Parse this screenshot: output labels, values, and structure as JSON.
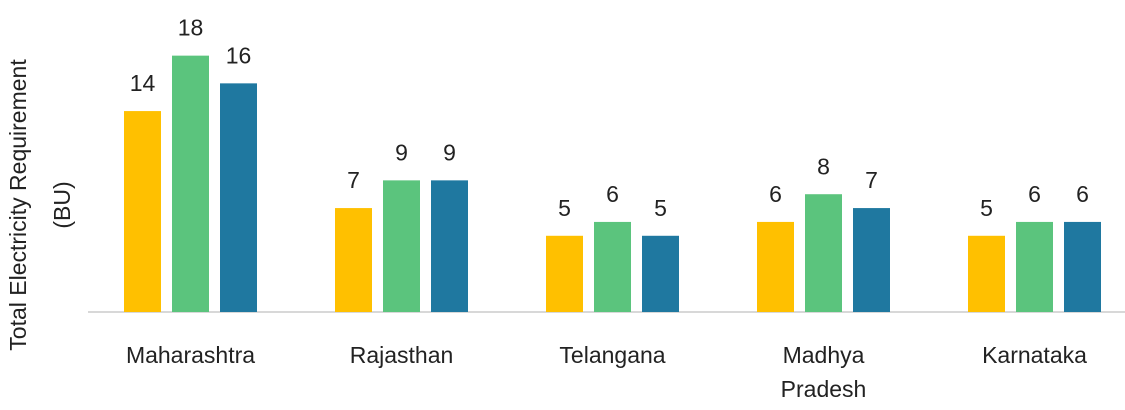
{
  "chart_data": {
    "type": "bar",
    "ylabel": [
      "Total Electricity Requirement",
      "(BU)"
    ],
    "categories": [
      "Maharashtra",
      "Rajasthan",
      "Telangana",
      "Madhya Pradesh",
      "Karnataka"
    ],
    "series": [
      {
        "color": "#FFC000",
        "values": [
          14,
          7,
          5,
          6,
          5
        ]
      },
      {
        "color": "#5BC47D",
        "values": [
          18,
          9,
          6,
          8,
          6
        ]
      },
      {
        "color": "#1F78A0",
        "values": [
          16,
          9,
          5,
          7,
          6
        ]
      }
    ],
    "ylim": [
      -0.5,
      20.5
    ]
  }
}
